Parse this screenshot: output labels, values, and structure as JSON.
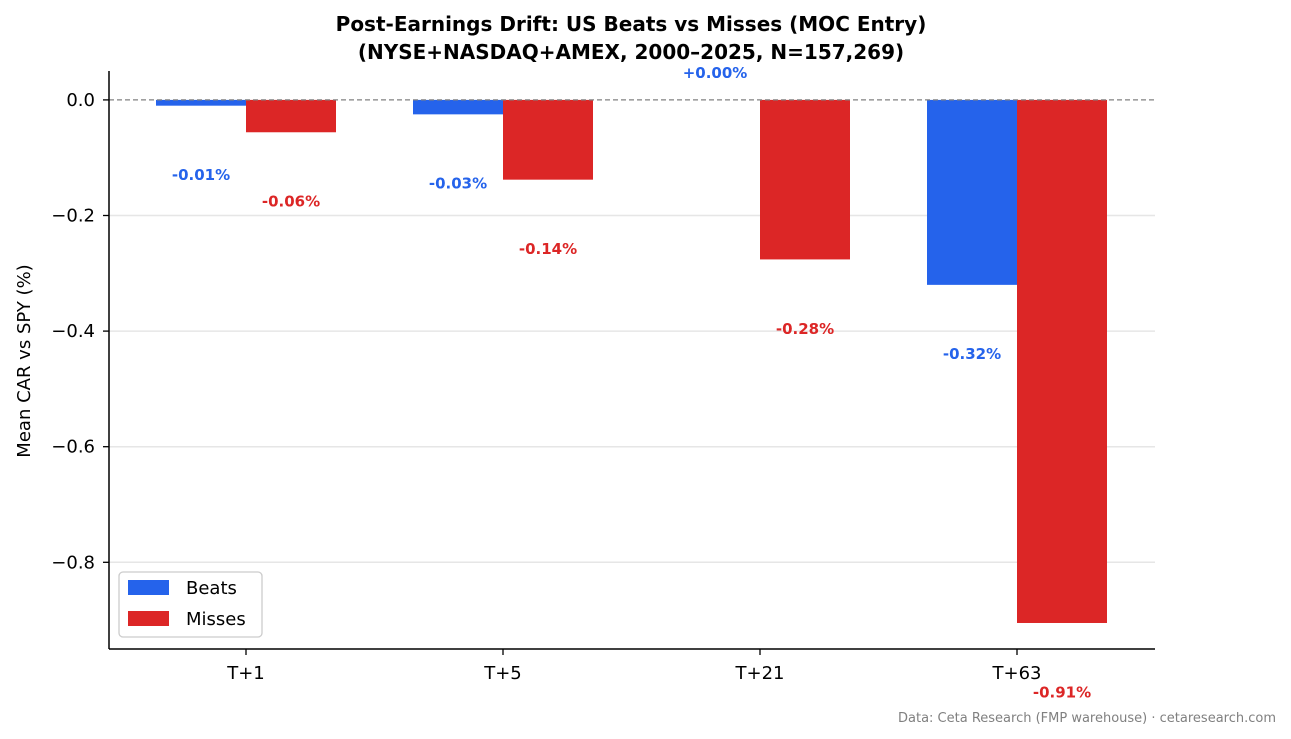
{
  "chart_data": {
    "type": "bar",
    "title": "Post-Earnings Drift: US Beats vs Misses (MOC Entry)",
    "subtitle": "(NYSE+NASDAQ+AMEX, 2000–2025, N=157,269)",
    "xlabel": "",
    "ylabel": "Mean CAR vs SPY (%)",
    "categories": [
      "T+1",
      "T+5",
      "T+21",
      "T+63"
    ],
    "series": [
      {
        "name": "Beats",
        "color": "#2563eb",
        "values": [
          -0.01,
          -0.025,
          0.0,
          -0.32
        ],
        "labels": [
          "-0.01%",
          "-0.03%",
          "+0.00%",
          "-0.32%"
        ]
      },
      {
        "name": "Misses",
        "color": "#dc2626",
        "values": [
          -0.056,
          -0.138,
          -0.276,
          -0.905
        ],
        "labels": [
          "-0.06%",
          "-0.14%",
          "-0.28%",
          "-0.91%"
        ]
      }
    ],
    "ylim": [
      -0.95,
      0.05
    ],
    "yticks": [
      0.0,
      -0.2,
      -0.4,
      -0.6,
      -0.8
    ],
    "ytick_labels": [
      "0.0",
      "−0.2",
      "−0.4",
      "−0.6",
      "−0.8"
    ],
    "grid": true,
    "zero_line": true,
    "legend_position": "lower-left"
  },
  "source_note": "Data: Ceta Research (FMP warehouse) · cetaresearch.com"
}
